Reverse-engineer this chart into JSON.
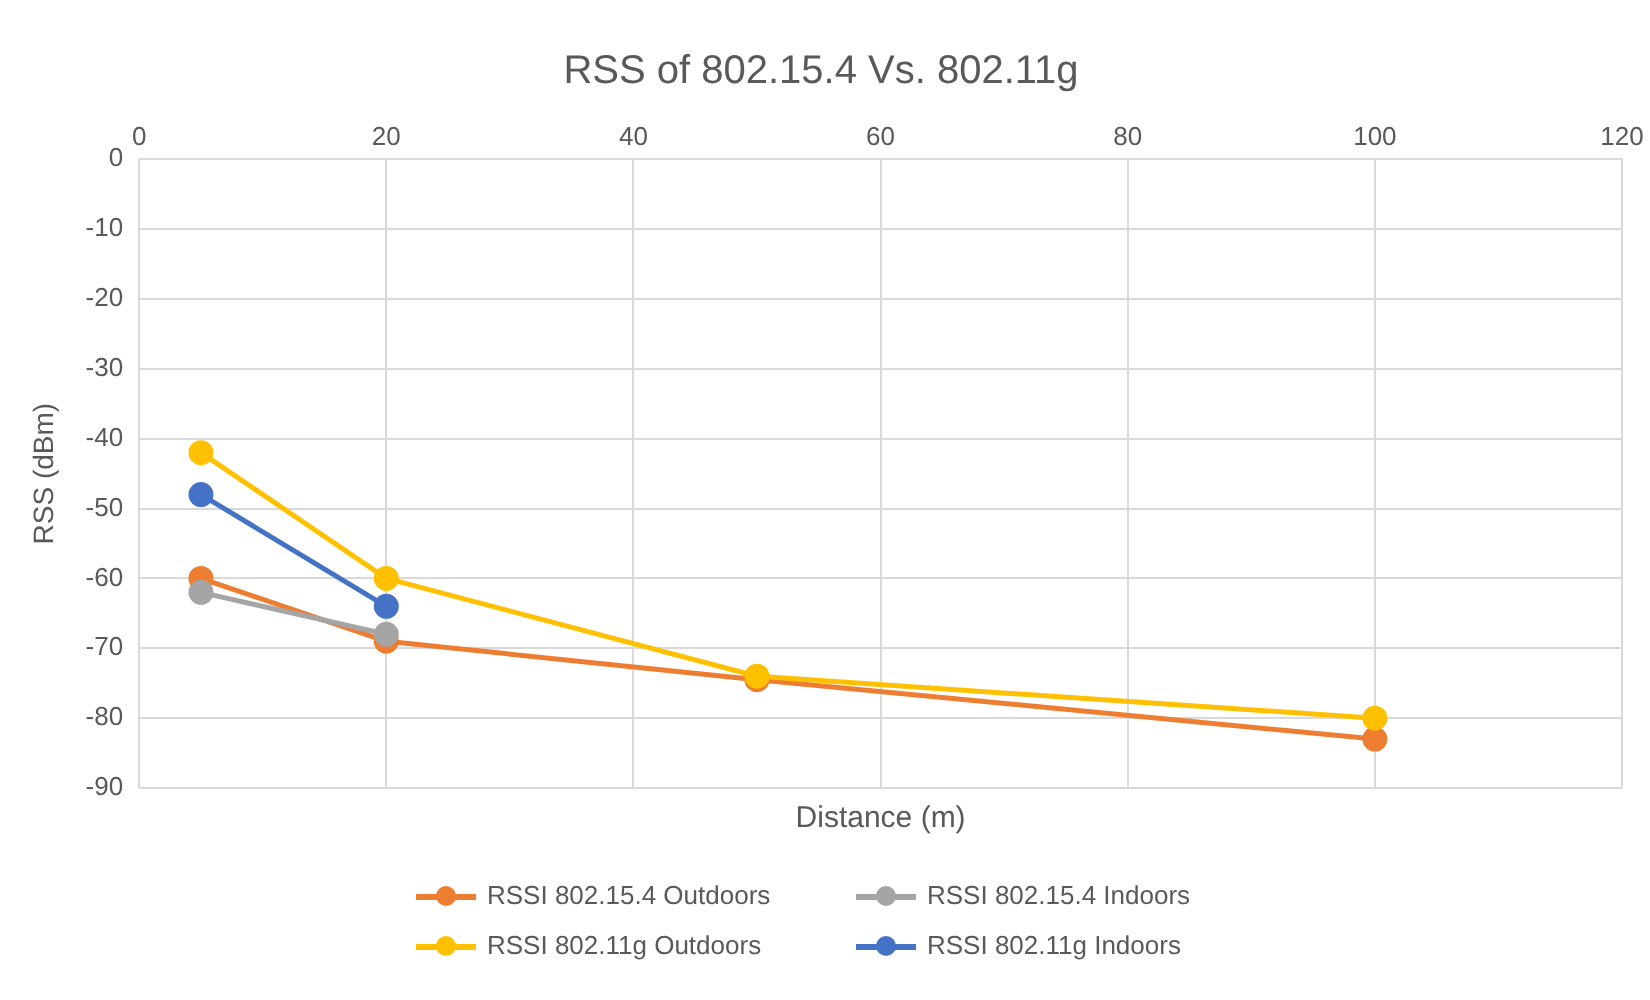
{
  "chart_data": {
    "type": "line",
    "title": "RSS of 802.15.4 Vs. 802.11g",
    "xlabel": "Distance (m)",
    "ylabel": "RSS (dBm)",
    "xlim": [
      0,
      120
    ],
    "xticks": [
      0,
      20,
      40,
      60,
      80,
      100,
      120
    ],
    "ylim": [
      -90,
      0
    ],
    "yticks": [
      -90,
      -80,
      -70,
      -60,
      -50,
      -40,
      -30,
      -20,
      -10,
      0
    ],
    "grid": true,
    "legend": "bottom",
    "marker": "circle",
    "line_style": "solid",
    "series": [
      {
        "name": "RSSI 802.15.4 Outdoors",
        "color": "#ed7d31",
        "x": [
          5,
          20,
          50,
          100
        ],
        "values": [
          -60,
          -69,
          -74.5,
          -83
        ]
      },
      {
        "name": "RSSI 802.15.4 Indoors",
        "color": "#a5a5a5",
        "x": [
          5,
          20
        ],
        "values": [
          -62,
          -68
        ]
      },
      {
        "name": "RSSI 802.11g Outdoors",
        "color": "#ffc000",
        "x": [
          5,
          20,
          50,
          100
        ],
        "values": [
          -42,
          -60,
          -74,
          -80
        ]
      },
      {
        "name": "RSSI 802.11g Indoors",
        "color": "#4472c4",
        "x": [
          5,
          20
        ],
        "values": [
          -48,
          -64
        ]
      }
    ]
  }
}
